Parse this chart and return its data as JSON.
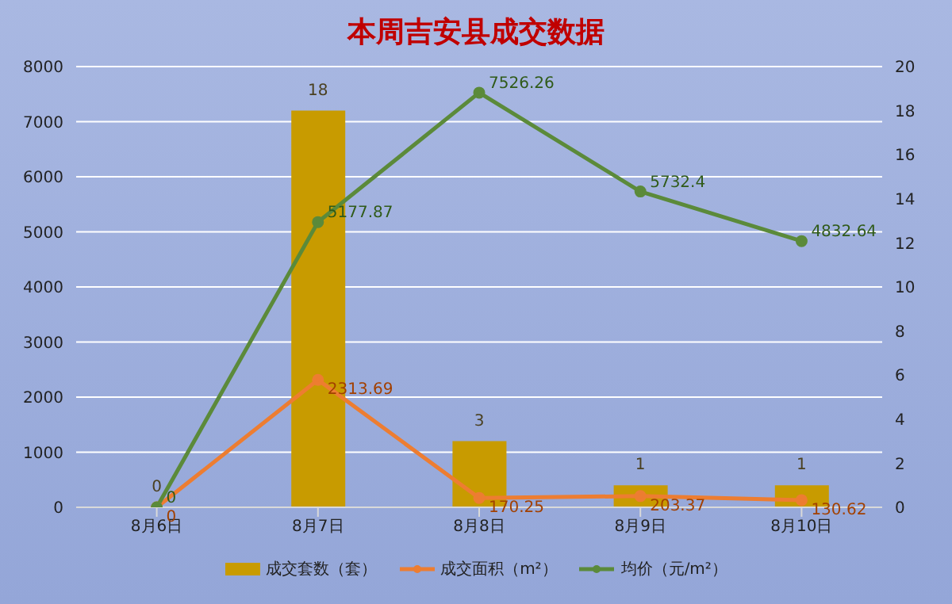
{
  "chart_data": {
    "type": "bar",
    "title": "本周吉安县成交数据",
    "categories": [
      "8月6日",
      "8月7日",
      "8月8日",
      "8月9日",
      "8月10日"
    ],
    "series": [
      {
        "name": "成交套数（套）",
        "axis": "y2",
        "color": "#c89b00",
        "values": [
          0,
          18,
          3,
          1,
          1
        ]
      },
      {
        "name": "成交面积（m²）",
        "type": "line",
        "color": "#ed7d31",
        "values": [
          0,
          2313.69,
          170.25,
          203.37,
          130.62
        ]
      },
      {
        "name": "均价（元/m²）",
        "type": "line",
        "color": "#5b8a3a",
        "values": [
          0,
          5177.87,
          7526.26,
          5732.4,
          4832.64
        ]
      }
    ],
    "ylim": [
      0,
      8000
    ],
    "yticks": [
      0,
      1000,
      2000,
      3000,
      4000,
      5000,
      6000,
      7000,
      8000
    ],
    "y2lim": [
      0,
      20
    ],
    "y2ticks": [
      0,
      2,
      4,
      6,
      8,
      10,
      12,
      14,
      16,
      18,
      20
    ],
    "grid": "y",
    "legend": "bottom",
    "data_labels": true,
    "marker": "circle"
  }
}
